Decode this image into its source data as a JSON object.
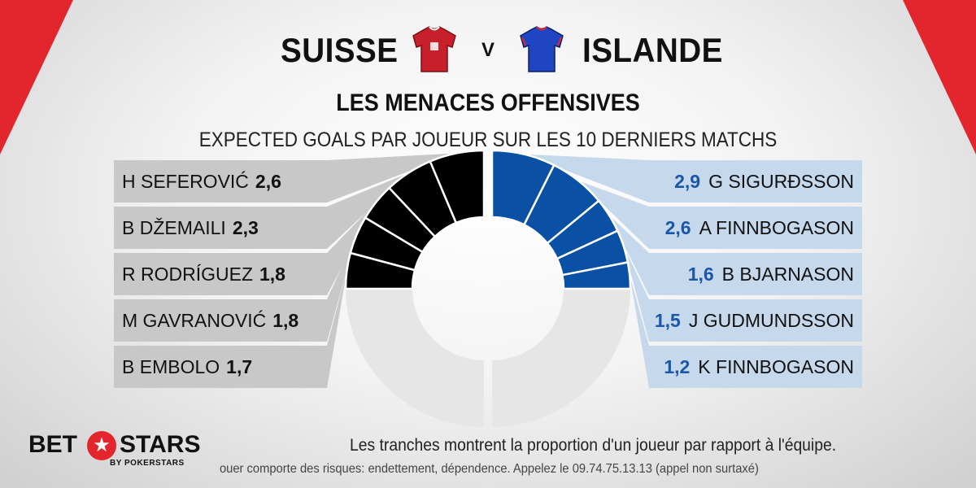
{
  "header": {
    "home_team": "SUISSE",
    "vs": "V",
    "away_team": "ISLANDE"
  },
  "title": "LES MENACES OFFENSIVES",
  "subtitle": "EXPECTED GOALS PAR JOUEUR SUR LES 10 DERNIERS MATCHS",
  "footnote": "Les tranches montrent la proportion d'un joueur par rapport à l'équipe.",
  "disclaimer": "ouer comporte des risques: endettement, dépendence. Appelez le 09.74.75.13.13 (appel non surtaxé)",
  "logo": {
    "bet": "BET",
    "stars": "STARS",
    "by": "BY POKERSTARS"
  },
  "colors": {
    "brand_red": "#e3262e",
    "home_slice": "#000000",
    "home_rest": "#e6e6e6",
    "home_panel": "#c8c8c8",
    "away_slice": "#0a50a5",
    "away_rest": "#e6e6e6",
    "away_panel": "#c5d8ec",
    "away_value_text": "#1a57a6"
  },
  "chart_data": [
    {
      "type": "pie",
      "team": "SUISSE",
      "categories": [
        "H SEFEROVIĆ",
        "B DŽEMAILI",
        "R RODRÍGUEZ",
        "M GAVRANOVIĆ",
        "B EMBOLO"
      ],
      "values": [
        2.6,
        2.3,
        1.8,
        1.8,
        1.7
      ],
      "value_labels": [
        "2,6",
        "2,3",
        "1,8",
        "1,8",
        "1,7"
      ],
      "rest_share": 0.5
    },
    {
      "type": "pie",
      "team": "ISLANDE",
      "categories": [
        "G SIGURÐSSON",
        "A FINNBOGASON",
        "B BJARNASON",
        "J GUDMUNDSSON",
        "K FINNBOGASON"
      ],
      "values": [
        2.9,
        2.6,
        1.6,
        1.5,
        1.2
      ],
      "value_labels": [
        "2,9",
        "2,6",
        "1,6",
        "1,5",
        "1,2"
      ],
      "rest_share": 0.5
    }
  ]
}
